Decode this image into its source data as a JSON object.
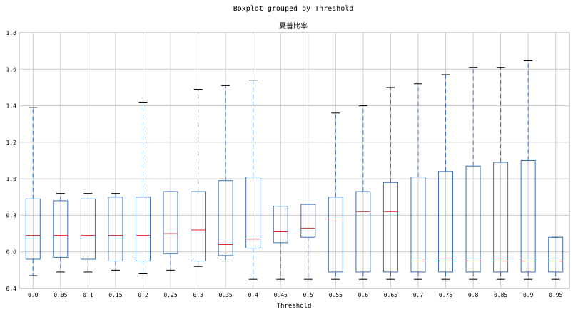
{
  "chart_data": {
    "type": "boxplot",
    "suptitle": "Boxplot grouped by Threshold",
    "title": "夏普比率",
    "xlabel": "Threshold",
    "ylabel": "",
    "ylim": [
      0.4,
      1.8
    ],
    "yticks": [
      "0.4",
      "0.6",
      "0.8",
      "1.0",
      "1.2",
      "1.4",
      "1.6",
      "1.8"
    ],
    "grid": true,
    "colors": {
      "box": "#3b6fb6",
      "median": "#d62728",
      "whisker": "#3b6fb6",
      "cap": "#000000",
      "grid": "#cccccc",
      "axis": "#aaaaaa"
    },
    "categories": [
      "0.0",
      "0.05",
      "0.1",
      "0.15",
      "0.2",
      "0.25",
      "0.3",
      "0.35",
      "0.4",
      "0.45",
      "0.5",
      "0.55",
      "0.6",
      "0.65",
      "0.7",
      "0.75",
      "0.8",
      "0.85",
      "0.9",
      "0.95"
    ],
    "boxes": [
      {
        "whislo": 0.47,
        "q1": 0.56,
        "med": 0.69,
        "q3": 0.89,
        "whishi": 1.39
      },
      {
        "whislo": 0.49,
        "q1": 0.57,
        "med": 0.69,
        "q3": 0.88,
        "whishi": 0.92
      },
      {
        "whislo": 0.49,
        "q1": 0.56,
        "med": 0.69,
        "q3": 0.89,
        "whishi": 0.92
      },
      {
        "whislo": 0.5,
        "q1": 0.55,
        "med": 0.69,
        "q3": 0.9,
        "whishi": 0.92
      },
      {
        "whislo": 0.48,
        "q1": 0.55,
        "med": 0.69,
        "q3": 0.9,
        "whishi": 1.42
      },
      {
        "whislo": 0.5,
        "q1": 0.59,
        "med": 0.7,
        "q3": 0.93,
        "whishi": 0.93
      },
      {
        "whislo": 0.52,
        "q1": 0.55,
        "med": 0.72,
        "q3": 0.93,
        "whishi": 1.49
      },
      {
        "whislo": 0.55,
        "q1": 0.58,
        "med": 0.64,
        "q3": 0.99,
        "whishi": 1.51
      },
      {
        "whislo": 0.45,
        "q1": 0.62,
        "med": 0.67,
        "q3": 1.01,
        "whishi": 1.54
      },
      {
        "whislo": 0.45,
        "q1": 0.65,
        "med": 0.71,
        "q3": 0.85,
        "whishi": 0.85
      },
      {
        "whislo": 0.45,
        "q1": 0.68,
        "med": 0.73,
        "q3": 0.86,
        "whishi": 0.86
      },
      {
        "whislo": 0.45,
        "q1": 0.49,
        "med": 0.78,
        "q3": 0.9,
        "whishi": 1.36
      },
      {
        "whislo": 0.45,
        "q1": 0.49,
        "med": 0.82,
        "q3": 0.93,
        "whishi": 1.4
      },
      {
        "whislo": 0.45,
        "q1": 0.49,
        "med": 0.82,
        "q3": 0.98,
        "whishi": 1.5
      },
      {
        "whislo": 0.45,
        "q1": 0.49,
        "med": 0.55,
        "q3": 1.01,
        "whishi": 1.52
      },
      {
        "whislo": 0.45,
        "q1": 0.49,
        "med": 0.55,
        "q3": 1.04,
        "whishi": 1.57
      },
      {
        "whislo": 0.45,
        "q1": 0.49,
        "med": 0.55,
        "q3": 1.07,
        "whishi": 1.61
      },
      {
        "whislo": 0.45,
        "q1": 0.49,
        "med": 0.55,
        "q3": 1.09,
        "whishi": 1.61
      },
      {
        "whislo": 0.45,
        "q1": 0.49,
        "med": 0.55,
        "q3": 1.1,
        "whishi": 1.65
      },
      {
        "whislo": 0.45,
        "q1": 0.49,
        "med": 0.55,
        "q3": 0.68,
        "whishi": 0.68
      }
    ]
  }
}
